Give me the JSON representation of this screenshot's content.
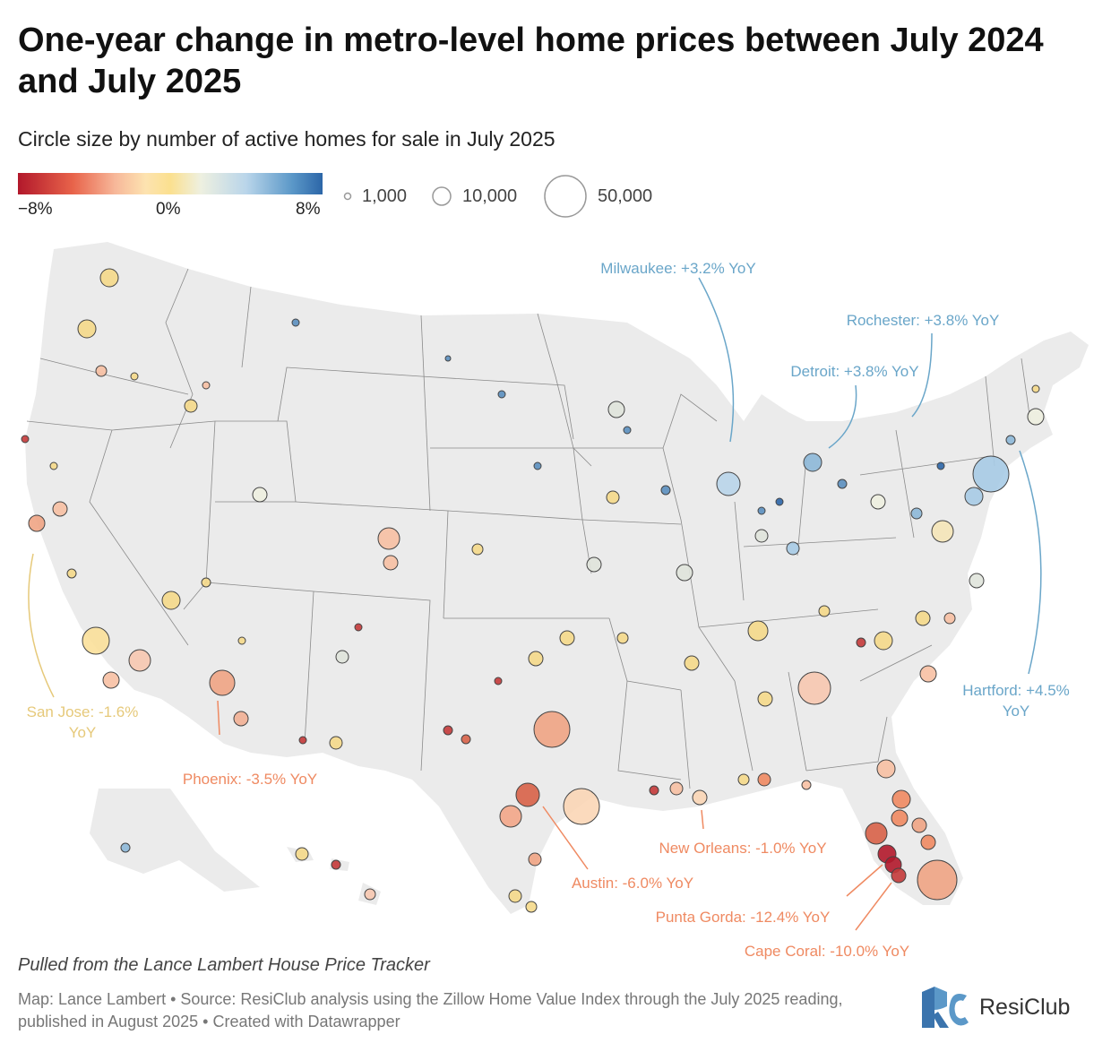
{
  "title": "One-year change in metro-level home prices between July 2024 and July 2025",
  "subtitle": "Circle size by number of active homes for sale in July 2025",
  "color_legend": {
    "min_label": "−8%",
    "mid_label": "0%",
    "max_label": "8%"
  },
  "size_legend": {
    "small": "1,000",
    "medium": "10,000",
    "large": "50,000"
  },
  "annotations": [
    {
      "id": "milwaukee",
      "text": "Milwaukee: +3.2% YoY",
      "value": 3.2
    },
    {
      "id": "rochester",
      "text": "Rochester: +3.8% YoY",
      "value": 3.8
    },
    {
      "id": "detroit",
      "text": "Detroit: +3.8% YoY",
      "value": 3.8
    },
    {
      "id": "hartford",
      "line1": "Hartford: +4.5%",
      "line2": "YoY",
      "value": 4.5
    },
    {
      "id": "san-jose",
      "line1": "San Jose: -1.6%",
      "line2": "YoY",
      "value": -1.6
    },
    {
      "id": "phoenix",
      "text": "Phoenix: -3.5% YoY",
      "value": -3.5
    },
    {
      "id": "austin",
      "text": "Austin: -6.0% YoY",
      "value": -6.0
    },
    {
      "id": "new-orleans",
      "text": "New Orleans: -1.0% YoY",
      "value": -1.0
    },
    {
      "id": "punta-gorda",
      "text": "Punta Gorda: -12.4% YoY",
      "value": -12.4
    },
    {
      "id": "cape-coral",
      "text": "Cape Coral: -10.0% YoY",
      "value": -10.0
    }
  ],
  "colors": {
    "positive": "#5a9dc4",
    "negative": "#ef8a62",
    "neutral": "#e6c97a",
    "map_fill": "#ebebeb",
    "map_border": "#8a8a8a"
  },
  "notes": "Pulled from the Lance Lambert House Price Tracker",
  "source": "Map: Lance Lambert • Source: ResiClub analysis using the Zillow Home Value Index through the July 2025 reading, published in August 2025 • Created with Datawrapper",
  "logo": {
    "text": "ResiClub"
  }
}
